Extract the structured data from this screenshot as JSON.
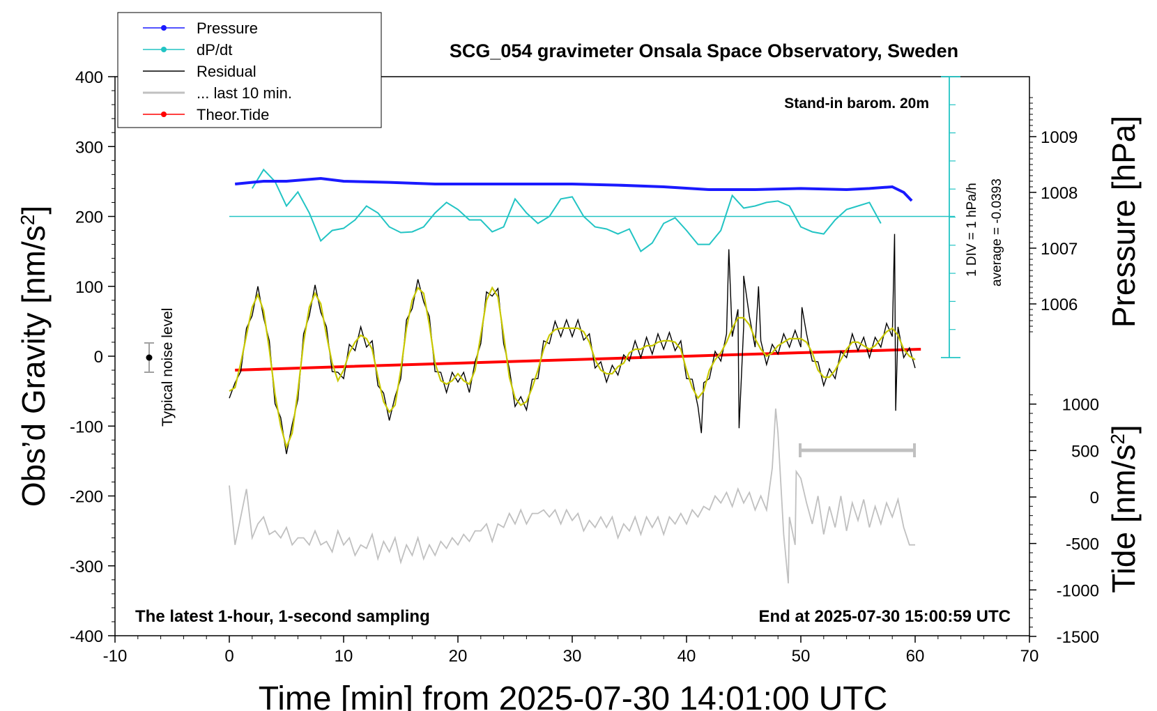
{
  "chart_data": {
    "type": "line",
    "title": "SCG_054 gravimeter Onsala Space Observatory, Sweden",
    "xlabel": "Time [min] from 2025-07-30 14:01:00 UTC",
    "xlim": [
      -10,
      70
    ],
    "x_ticks": [
      "-10",
      "0",
      "10",
      "20",
      "30",
      "40",
      "50",
      "60",
      "70"
    ],
    "y_left": {
      "label_main": "Obs’d Gravity [nm/s",
      "label_sup": "2",
      "label_end": "]",
      "lim": [
        -400,
        400
      ],
      "ticks": [
        "-400",
        "-300",
        "-200",
        "-100",
        "0",
        "100",
        "200",
        "300",
        "400"
      ]
    },
    "y_right_pressure": {
      "label": "Pressure [hPa]",
      "ticks": [
        "1006",
        "1007",
        "1008",
        "1009"
      ],
      "tick_values": [
        1006,
        1007,
        1008,
        1009
      ]
    },
    "y_right_tide": {
      "label_main": "Tide [nm/s",
      "label_sup": "2",
      "label_end": "]",
      "ticks": [
        "-1500",
        "-1000",
        "-500",
        "0",
        "500",
        "1000"
      ],
      "tick_values": [
        -1500,
        -1000,
        -500,
        0,
        500,
        1000
      ]
    },
    "annotations": {
      "top_right": "Stand-in barom. 20m",
      "bottom_left": "The latest 1-hour, 1-second sampling",
      "bottom_right": "End at 2025-07-30 15:00:59 UTC",
      "noise": "Typical noise level",
      "div": "1 DIV = 1 hPa/h",
      "average": "average = -0.0393"
    },
    "legend": {
      "placement": "top-left",
      "entries": [
        {
          "name": "Pressure",
          "color": "#1a1aff",
          "marker": true
        },
        {
          "name": "dP/dt",
          "color": "#22c4c4",
          "marker": true
        },
        {
          "name": "Residual",
          "color": "#000000",
          "marker": false
        },
        {
          "name": "... last 10 min.",
          "color": "#c0c0c0",
          "marker": false
        },
        {
          "name": "Theor.Tide",
          "color": "#ff0000",
          "marker": true
        }
      ]
    },
    "series": [
      {
        "name": "Pressure",
        "unit": "hPa",
        "color": "#1a1aff",
        "x": [
          0.5,
          3,
          5,
          8,
          10,
          14,
          18,
          22,
          26,
          30,
          34,
          38,
          42,
          46,
          50,
          54,
          56,
          58,
          59,
          59.7
        ],
        "y": [
          1008.15,
          1008.2,
          1008.2,
          1008.25,
          1008.2,
          1008.18,
          1008.15,
          1008.15,
          1008.15,
          1008.15,
          1008.13,
          1008.1,
          1008.05,
          1008.05,
          1008.07,
          1008.05,
          1008.07,
          1008.1,
          1008.0,
          1007.85
        ]
      },
      {
        "name": "dP/dt",
        "unit": "nm/s2",
        "color": "#22c4c4",
        "x": [
          2.0,
          3.0,
          4.0,
          5.0,
          6.0,
          7.0,
          8.0,
          9.0,
          10.0,
          11.0,
          12.0,
          13.0,
          14.0,
          15.0,
          16.0,
          17.0,
          18.0,
          19.0,
          20.0,
          21.0,
          22.0,
          23.0,
          24.0,
          25.0,
          26.0,
          27.0,
          28.0,
          29.0,
          30.0,
          31.0,
          32.0,
          33.0,
          34.0,
          35.0,
          36.0,
          37.0,
          38.0,
          39.0,
          40.0,
          41.0,
          42.0,
          43.0,
          44.0,
          45.0,
          46.0,
          47.0,
          48.0,
          49.0,
          50.0,
          51.0,
          52.0,
          53.0,
          54.0,
          55.0,
          56.0,
          57.0
        ],
        "y": [
          240,
          267,
          250,
          215,
          235,
          205,
          165,
          180,
          183,
          195,
          215,
          205,
          185,
          177,
          178,
          185,
          205,
          220,
          210,
          195,
          195,
          178,
          185,
          225,
          205,
          190,
          200,
          225,
          228,
          200,
          185,
          182,
          175,
          182,
          150,
          162,
          190,
          198,
          180,
          160,
          160,
          180,
          230,
          212,
          215,
          220,
          222,
          215,
          185,
          178,
          175,
          195,
          210,
          215,
          220,
          190
        ]
      },
      {
        "name": "Residual (smoothed)",
        "unit": "nm/s2",
        "color": "#c8c800",
        "x": [
          0.0,
          0.5,
          1.0,
          1.5,
          2.0,
          2.5,
          3.0,
          3.5,
          4.0,
          4.5,
          5.0,
          5.5,
          6.0,
          6.5,
          7.0,
          7.5,
          8.0,
          8.5,
          9.0,
          9.5,
          10.0,
          10.5,
          11.0,
          11.5,
          12.0,
          12.5,
          13.0,
          13.5,
          14.0,
          14.5,
          15.0,
          15.5,
          16.0,
          16.5,
          17.0,
          17.5,
          18.0,
          18.5,
          19.0,
          19.5,
          20.0,
          20.5,
          21.0,
          21.5,
          22.0,
          22.5,
          23.0,
          23.5,
          24.0,
          24.5,
          25.0,
          25.5,
          26.0,
          26.5,
          27.0,
          27.5,
          28.0,
          28.5,
          29.0,
          29.5,
          30.0,
          30.5,
          31.0,
          31.5,
          32.0,
          32.5,
          33.0,
          33.5,
          34.0,
          34.5,
          35.0,
          35.5,
          36.0,
          36.5,
          37.0,
          37.5,
          38.0,
          38.5,
          39.0,
          39.5,
          40.0,
          40.5,
          41.0,
          41.5,
          42.0,
          42.5,
          43.0,
          43.5,
          44.0,
          44.5,
          45.0,
          45.5,
          46.0,
          46.5,
          47.0,
          47.5,
          48.0,
          48.5,
          49.0,
          49.5,
          50.0,
          50.5,
          51.0,
          51.5,
          52.0,
          52.5,
          53.0,
          53.5,
          54.0,
          54.5,
          55.0,
          55.5,
          56.0,
          56.5,
          57.0,
          57.5,
          58.0,
          58.5,
          59.0,
          59.5,
          60.0
        ],
        "y": [
          -50,
          -45,
          -10,
          30,
          70,
          88,
          65,
          10,
          -55,
          -100,
          -130,
          -110,
          -50,
          20,
          70,
          90,
          75,
          30,
          -10,
          -35,
          -20,
          5,
          20,
          30,
          25,
          10,
          -30,
          -65,
          -80,
          -70,
          -20,
          40,
          80,
          98,
          90,
          45,
          -10,
          -35,
          -40,
          -35,
          -25,
          -35,
          -40,
          -20,
          30,
          80,
          98,
          85,
          30,
          -30,
          -60,
          -70,
          -65,
          -45,
          -20,
          10,
          30,
          38,
          40,
          40,
          40,
          40,
          35,
          20,
          -5,
          -20,
          -25,
          -25,
          -15,
          -10,
          5,
          10,
          10,
          15,
          15,
          20,
          22,
          22,
          20,
          10,
          -20,
          -45,
          -60,
          -50,
          -20,
          -5,
          5,
          20,
          40,
          55,
          55,
          45,
          25,
          10,
          0,
          5,
          15,
          20,
          25,
          25,
          25,
          20,
          5,
          -20,
          -30,
          -30,
          -20,
          -5,
          10,
          20,
          20,
          15,
          10,
          15,
          25,
          35,
          40,
          30,
          10,
          0,
          -5
        ],
        "legend": false
      },
      {
        "name": "Residual",
        "unit": "nm/s2",
        "color": "#000000",
        "x": [
          0.0,
          0.5,
          1.0,
          1.5,
          2.0,
          2.5,
          3.0,
          3.5,
          4.0,
          4.5,
          5.0,
          5.5,
          6.0,
          6.5,
          7.0,
          7.5,
          8.0,
          8.5,
          9.0,
          9.5,
          10.0,
          10.5,
          11.0,
          11.5,
          12.0,
          12.5,
          13.0,
          13.5,
          14.0,
          14.5,
          15.0,
          15.5,
          16.0,
          16.5,
          17.0,
          17.5,
          18.0,
          18.5,
          19.0,
          19.5,
          20.0,
          20.5,
          21.0,
          21.5,
          22.0,
          22.5,
          23.0,
          23.5,
          24.0,
          24.5,
          25.0,
          25.5,
          26.0,
          26.5,
          27.0,
          27.5,
          28.0,
          28.5,
          29.0,
          29.5,
          30.0,
          30.5,
          31.0,
          31.5,
          32.0,
          32.5,
          33.0,
          33.5,
          34.0,
          34.5,
          35.0,
          35.5,
          36.0,
          36.5,
          37.0,
          37.5,
          38.0,
          38.5,
          39.0,
          39.5,
          40.0,
          40.5,
          41.0,
          41.5,
          42.0,
          42.5,
          43.0,
          43.5,
          44.0,
          44.5,
          45.0,
          45.5,
          46.0,
          46.5,
          47.0,
          47.5,
          48.0,
          48.5,
          49.0,
          49.5,
          50.0,
          50.5,
          51.0,
          51.5,
          52.0,
          52.5,
          53.0,
          53.5,
          54.0,
          54.5,
          55.0,
          55.5,
          56.0,
          56.5,
          57.0,
          57.5,
          58.0,
          58.5,
          59.0,
          59.5,
          60.0
        ],
        "y": [
          -60,
          -38,
          -22,
          40,
          58,
          100,
          55,
          22,
          -68,
          -88,
          -140,
          -98,
          -62,
          32,
          58,
          102,
          63,
          42,
          -22,
          -23,
          -32,
          17,
          8,
          42,
          13,
          22,
          -42,
          -53,
          -92,
          -58,
          -32,
          52,
          68,
          110,
          78,
          57,
          -22,
          -23,
          -52,
          -23,
          -37,
          -23,
          -52,
          -8,
          18,
          92,
          86,
          97,
          18,
          -18,
          -72,
          -58,
          -77,
          -33,
          -32,
          22,
          18,
          50,
          28,
          52,
          28,
          52,
          23,
          32,
          -17,
          -8,
          -37,
          -13,
          -27,
          2,
          -7,
          22,
          -2,
          27,
          3,
          32,
          10,
          34,
          8,
          22,
          -32,
          -33,
          -72,
          -38,
          -32,
          7,
          -7,
          32,
          28,
          67,
          43,
          57,
          13,
          22,
          -12,
          17,
          3,
          32,
          13,
          37,
          13,
          32,
          -7,
          -8,
          -42,
          -18,
          -32,
          7,
          -2,
          32,
          8,
          27,
          -2,
          27,
          13,
          47,
          28,
          42,
          -2,
          12,
          -17
        ],
        "spikes": [
          {
            "x": 43.7,
            "y": 153
          },
          {
            "x": 45.0,
            "y": 115
          },
          {
            "x": 46.3,
            "y": 100
          },
          {
            "x": 50.1,
            "y": 70
          },
          {
            "x": 58.2,
            "y": 175
          },
          {
            "x": 41.3,
            "y": -110
          },
          {
            "x": 44.6,
            "y": -103
          },
          {
            "x": 58.3,
            "y": -78
          }
        ]
      },
      {
        "name": "... last 10 min.",
        "unit": "nm/s2",
        "color": "#c0c0c0",
        "x": [
          0.0,
          0.5,
          1.0,
          1.5,
          2.0,
          2.5,
          3.0,
          3.5,
          4.0,
          4.5,
          5.0,
          5.5,
          6.0,
          6.5,
          7.0,
          7.5,
          8.0,
          8.5,
          9.0,
          9.5,
          10.0,
          10.5,
          11.0,
          11.5,
          12.0,
          12.5,
          13.0,
          13.5,
          14.0,
          14.5,
          15.0,
          15.5,
          16.0,
          16.5,
          17.0,
          17.5,
          18.0,
          18.5,
          19.0,
          19.5,
          20.0,
          20.5,
          21.0,
          21.5,
          22.0,
          22.5,
          23.0,
          23.5,
          24.0,
          24.5,
          25.0,
          25.5,
          26.0,
          26.5,
          27.0,
          27.5,
          28.0,
          28.5,
          29.0,
          29.5,
          30.0,
          30.5,
          31.0,
          31.5,
          32.0,
          32.5,
          33.0,
          33.5,
          34.0,
          34.5,
          35.0,
          35.5,
          36.0,
          36.5,
          37.0,
          37.5,
          38.0,
          38.5,
          39.0,
          39.5,
          40.0,
          40.5,
          41.0,
          41.5,
          42.0,
          42.5,
          43.0,
          43.5,
          44.0,
          44.5,
          45.0,
          45.5,
          46.0,
          46.5,
          47.0,
          47.5,
          48.0,
          48.5,
          49.0,
          49.5,
          50.0,
          50.5,
          51.0,
          51.5,
          52.0,
          52.5,
          53.0,
          53.5,
          54.0,
          54.5,
          55.0,
          55.5,
          56.0,
          56.5,
          57.0,
          57.5,
          58.0,
          58.5,
          59.0,
          59.5,
          60.0
        ],
        "y": [
          -185,
          -270,
          -230,
          -190,
          -260,
          -240,
          -230,
          -255,
          -250,
          -260,
          -245,
          -270,
          -260,
          -260,
          -270,
          -250,
          -270,
          -265,
          -280,
          -250,
          -270,
          -260,
          -285,
          -270,
          -275,
          -255,
          -290,
          -265,
          -280,
          -260,
          -295,
          -270,
          -285,
          -260,
          -290,
          -270,
          -285,
          -265,
          -275,
          -260,
          -270,
          -255,
          -265,
          -250,
          -250,
          -240,
          -265,
          -240,
          -245,
          -225,
          -240,
          -220,
          -240,
          -225,
          -225,
          -220,
          -230,
          -220,
          -240,
          -220,
          -235,
          -225,
          -250,
          -235,
          -245,
          -230,
          -245,
          -230,
          -260,
          -240,
          -250,
          -230,
          -255,
          -230,
          -245,
          -230,
          -255,
          -230,
          -240,
          -225,
          -240,
          -220,
          -230,
          -215,
          -220,
          -200,
          -210,
          -195,
          -215,
          -190,
          -210,
          -195,
          -220,
          -200,
          -220,
          -160,
          -110,
          -255,
          -230,
          -270,
          -175,
          -210,
          -240,
          -200,
          -255,
          -215,
          -245,
          -200,
          -250,
          -210,
          -235,
          -205,
          -245,
          -215,
          -240,
          -210,
          -230,
          -205,
          -245,
          -270,
          -270
        ],
        "spikes": [
          {
            "x": 47.8,
            "y": -75
          },
          {
            "x": 48.9,
            "y": -325
          },
          {
            "x": 49.6,
            "y": -165
          }
        ]
      },
      {
        "name": "Theor.Tide",
        "unit": "nm/s2",
        "color": "#ff0000",
        "x": [
          0.5,
          10,
          20,
          30,
          40,
          50,
          60.5
        ],
        "y": [
          -20,
          -15,
          -10,
          -5,
          0,
          5,
          10
        ]
      }
    ]
  }
}
